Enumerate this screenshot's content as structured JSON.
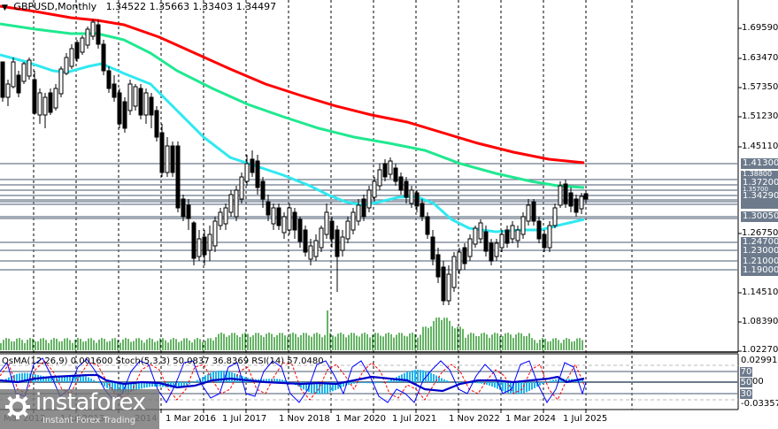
{
  "header": {
    "symbol": "GBPUSD,Monthly",
    "open": "1.34522",
    "high": "1.35663",
    "low": "1.33403",
    "close": "1.34497"
  },
  "indicators_title": "OsMA(12,26,9) 0.001600  Stoch(5,3,3) 50.0837 36.8369  RSI(14) 57.0480",
  "price_axis": [
    "1.69590",
    "1.63470",
    "1.57350",
    "1.51230",
    "1.45110",
    "1.26750",
    "1.14510",
    "1.08390",
    "1.02270"
  ],
  "level_labels": [
    "1.41300",
    "1.38800",
    "1.37200",
    "1.35700",
    "1.34290",
    "1.30050",
    "1.24700",
    "1.23000",
    "1.21000",
    "1.19000"
  ],
  "oscillator_axis": {
    "top": "0.029916",
    "bottom": "-0.033574",
    "levels": [
      "70",
      "50",
      "30"
    ],
    "mid_text": "00"
  },
  "date_axis": [
    "Mar 2012",
    "1 Jul 2013",
    "2014",
    "1 Mar 2016",
    "1 Jul 2017",
    "1 Nov 2018",
    "1 Mar 2020",
    "1 Jul 2021",
    "1 Nov 2022",
    "1 Mar 2024",
    "1 Jul 2025"
  ],
  "logo": {
    "brand": "instaforex",
    "tagline": "Instant Forex Trading"
  },
  "colors": {
    "ma_slow": "#ff0000",
    "ma_mid": "#20e890",
    "ma_fast": "#30e8f0",
    "volume": "#008000",
    "osma": "#1eb4ee",
    "rsi": "#0000c8",
    "stoch_main": "#0000ff",
    "stoch_signal": "#ff0000",
    "level_line": "#6c7a8c"
  },
  "chart_data": {
    "type": "candlestick",
    "title": "GBPUSD, Monthly",
    "ohlc_last": {
      "open": 1.34522,
      "high": 1.35663,
      "low": 1.33403,
      "close": 1.34497
    },
    "y_ticks": [
      1.6959,
      1.6347,
      1.5735,
      1.5123,
      1.4511,
      1.2675,
      1.1451,
      1.0839,
      1.0227
    ],
    "ylim": [
      1.0227,
      1.74
    ],
    "x_ticks": [
      "Mar 2012",
      "1 Jul 2013",
      "2014",
      "1 Mar 2016",
      "1 Jul 2017",
      "1 Nov 2018",
      "1 Mar 2020",
      "1 Jul 2021",
      "1 Nov 2022",
      "1 Mar 2024",
      "1 Jul 2025"
    ],
    "horizontal_levels": [
      1.413,
      1.388,
      1.372,
      1.357,
      1.3429,
      1.3005,
      1.247,
      1.23,
      1.21,
      1.19
    ],
    "moving_averages": [
      {
        "name": "MA slow (red)",
        "start": 1.74,
        "end": 1.413
      },
      {
        "name": "MA mid (green)",
        "start": 1.69,
        "end": 1.357
      },
      {
        "name": "MA fast (cyan)",
        "start": 1.61,
        "end": 1.3005
      }
    ],
    "price_path_approx": [
      {
        "date": "2011",
        "price": 1.6
      },
      {
        "date": "2013",
        "price": 1.55
      },
      {
        "date": "2014-07",
        "price": 1.71
      },
      {
        "date": "2016-06",
        "price": 1.33
      },
      {
        "date": "2016-10",
        "price": 1.22
      },
      {
        "date": "2018-03",
        "price": 1.42
      },
      {
        "date": "2019-08",
        "price": 1.2
      },
      {
        "date": "2020-03",
        "price": 1.16
      },
      {
        "date": "2021-05",
        "price": 1.41
      },
      {
        "date": "2022-09",
        "price": 1.07
      },
      {
        "date": "2023-07",
        "price": 1.3
      },
      {
        "date": "2024-10",
        "price": 1.24
      },
      {
        "date": "2025-07",
        "price": 1.375
      },
      {
        "date": "2025-10",
        "price": 1.345
      }
    ],
    "indicators": {
      "OsMA(12,26,9)": 0.0016,
      "Stoch(5,3,3)": {
        "main": 50.0837,
        "signal": 36.8369
      },
      "RSI(14)": 57.048,
      "oscillator_range": [
        -0.033574,
        0.029916
      ],
      "levels": [
        70,
        50,
        30
      ]
    }
  }
}
